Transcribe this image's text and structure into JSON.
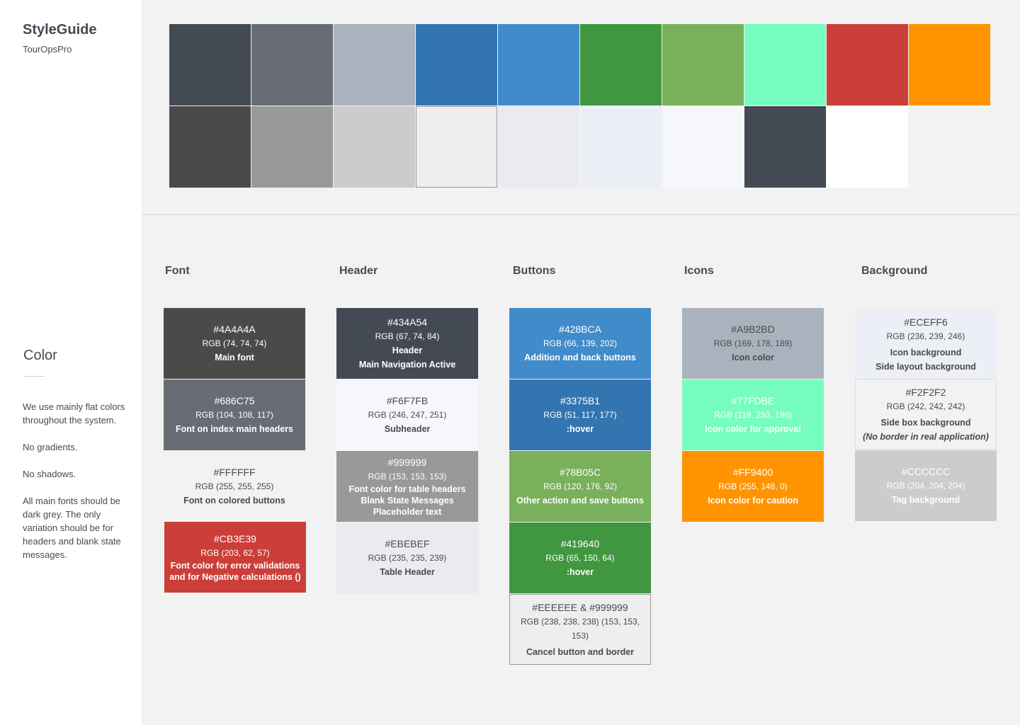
{
  "app": {
    "title": "StyleGuide",
    "subtitle": "TourOpsPro"
  },
  "sidebar": {
    "section_title": "Color",
    "notes": [
      "We use mainly flat colors throughout the system.",
      "No gradients.",
      "No shadows.",
      "All main fonts should be dark grey. The only variation should be for headers and blank state messages."
    ]
  },
  "palette": {
    "row1": [
      "#434A54",
      "#686C75",
      "#A9B2BD",
      "#3375B1",
      "#428BCA",
      "#419640",
      "#78B05C",
      "#77FDBE",
      "#CB3E39",
      "#FF9400"
    ],
    "row2": [
      "#4A4A4A",
      "#999999",
      "#CCCCCC",
      "#EEEEEE",
      "#EBEBEF",
      "#ECEFF6",
      "#F6F7FB",
      "#434A54",
      "#FFFFFF"
    ]
  },
  "columns": {
    "font": {
      "title": "Font",
      "cards": [
        {
          "hex": "#4A4A4A",
          "rgb": "RGB (74, 74, 74)",
          "desc": "Main font",
          "bg": "#4A4A4A",
          "fg": "#FFFFFF"
        },
        {
          "hex": "#686C75",
          "rgb": "RGB (104, 108, 117)",
          "desc": "Font on index main headers",
          "bg": "#686C75",
          "fg": "#FFFFFF"
        },
        {
          "hex": "#FFFFFF",
          "rgb": "RGB (255, 255, 255)",
          "desc": "Font on colored buttons",
          "bg": "#F2F2F2",
          "fg": "#4A4A4A"
        },
        {
          "hex": "#CB3E39",
          "rgb": "RGB (203, 62, 57)",
          "desc1": "Font color for error validations",
          "desc2": "and for Negative calculations ()",
          "bg": "#CB3E39",
          "fg": "#FFFFFF"
        }
      ]
    },
    "header": {
      "title": "Header",
      "cards": [
        {
          "hex": "#434A54",
          "rgb": "RGB (67, 74, 84)",
          "desc1": "Header",
          "desc2": "Main Navigation Active",
          "bg": "#434A54",
          "fg": "#FFFFFF"
        },
        {
          "hex": "#F6F7FB",
          "rgb": "RGB (246, 247, 251)",
          "desc": "Subheader",
          "bg": "#F6F7FB",
          "fg": "#4A4A4A"
        },
        {
          "hex": "#999999",
          "rgb": "RGB (153, 153, 153)",
          "desc1": "Font color for table headers",
          "desc2": "Blank State Messages",
          "desc3": "Placeholder text",
          "bg": "#999999",
          "fg": "#FFFFFF"
        },
        {
          "hex": "#EBEBEF",
          "rgb": "RGB (235, 235, 239)",
          "desc": "Table Header",
          "bg": "#EBEBEF",
          "fg": "#4A4A4A"
        }
      ]
    },
    "buttons": {
      "title": "Buttons",
      "cards": [
        {
          "hex": "#428BCA",
          "rgb": "RGB (66, 139, 202)",
          "desc": "Addition and back buttons",
          "bg": "#428BCA",
          "fg": "#FFFFFF"
        },
        {
          "hex": "#3375B1",
          "rgb": "RGB (51, 117, 177)",
          "desc": ":hover",
          "bg": "#3375B1",
          "fg": "#FFFFFF"
        },
        {
          "hex": "#78B05C",
          "rgb": "RGB (120, 176, 92)",
          "desc": "Other action and save buttons",
          "bg": "#78B05C",
          "fg": "#FFFFFF"
        },
        {
          "hex": "#419640",
          "rgb": "RGB (65, 150, 64)",
          "desc": ":hover",
          "bg": "#419640",
          "fg": "#FFFFFF"
        },
        {
          "hex": "#EEEEEE & #999999",
          "rgb": "RGB (238, 238, 238) (153, 153, 153)",
          "desc": "Cancel button and border",
          "bg": "#EEEEEE",
          "fg": "#4A4A4A"
        }
      ]
    },
    "icons": {
      "title": "Icons",
      "cards": [
        {
          "hex": "#A9B2BD",
          "rgb": "RGB (169, 178, 189)",
          "desc": "Icon color",
          "bg": "#A9B2BD",
          "fg": "#4A4A4A"
        },
        {
          "hex": "#77FDBE",
          "rgb": "RGB (119, 253, 190)",
          "desc": "Icon color for approval",
          "bg": "#77FDBE",
          "fg": "#FFFFFF"
        },
        {
          "hex": "#FF9400",
          "rgb": "RGB (255, 148, 0)",
          "desc": "Icon color for caution",
          "bg": "#FF9400",
          "fg": "#FFFFFF"
        }
      ]
    },
    "background": {
      "title": "Background",
      "cards": [
        {
          "hex": "#ECEFF6",
          "rgb": "RGB (236, 239, 246)",
          "desc1": "Icon background",
          "desc2": "Side layout background",
          "bg": "#ECEFF6",
          "fg": "#4A4A4A"
        },
        {
          "hex": "#F2F2F2",
          "rgb": "RGB (242, 242, 242)",
          "desc1": "Side box background",
          "desc2": "(No border in real application)",
          "bg": "#F2F2F2",
          "fg": "#4A4A4A"
        },
        {
          "hex": "#CCCCCC",
          "rgb": "RGB (204, 204, 204)",
          "desc": "Tag background",
          "bg": "#CCCCCC",
          "fg": "#FFFFFF"
        }
      ]
    }
  }
}
